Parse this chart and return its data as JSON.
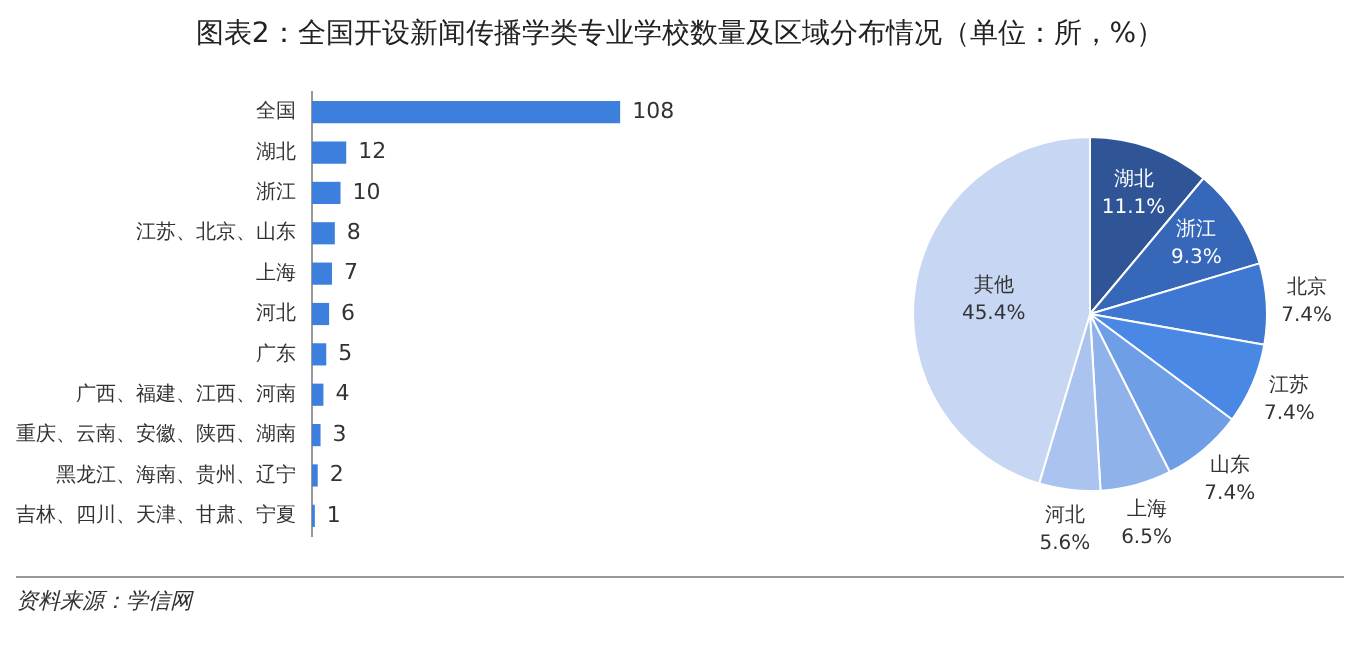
{
  "chart_data": [
    {
      "type": "bar",
      "title": "图表2：全国开设新闻传播学类专业学校数量及区域分布情况（单位：所，%）",
      "orientation": "horizontal",
      "categories": [
        "全国",
        "湖北",
        "浙江",
        "江苏、北京、山东",
        "上海",
        "河北",
        "广东",
        "广西、福建、江西、河南",
        "重庆、云南、安徽、陕西、湖南",
        "黑龙江、海南、贵州、辽宁",
        "吉林、四川、天津、甘肃、宁夏"
      ],
      "values": [
        108,
        12,
        10,
        8,
        7,
        6,
        5,
        4,
        3,
        2,
        1
      ],
      "color": "#3d7fdc",
      "data_labels": true,
      "grid": false,
      "legend": false
    },
    {
      "type": "pie",
      "categories": [
        "湖北",
        "浙江",
        "北京",
        "江苏",
        "山东",
        "上海",
        "河北",
        "其他"
      ],
      "values": [
        11.1,
        9.3,
        7.4,
        7.4,
        7.4,
        6.5,
        5.6,
        45.4
      ],
      "value_labels": [
        "11.1%",
        "9.3%",
        "7.4%",
        "7.4%",
        "7.4%",
        "6.5%",
        "5.6%",
        "45.4%"
      ],
      "colors": [
        "#2f5597",
        "#3767b8",
        "#3f78d2",
        "#4a88e6",
        "#6e9ee6",
        "#8fb2ea",
        "#abc4ef",
        "#c6d6f3"
      ],
      "legend": false,
      "annotations": [
        "资料来源：学信网"
      ]
    }
  ]
}
